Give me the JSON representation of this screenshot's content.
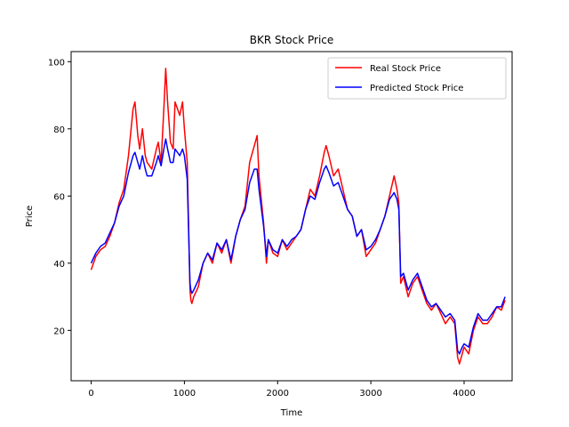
{
  "chart_data": {
    "type": "line",
    "title": "BKR Stock Price",
    "xlabel": "Time",
    "ylabel": "Price",
    "xlim": [
      -215,
      4515
    ],
    "ylim": [
      5,
      103
    ],
    "xticks": [
      0,
      1000,
      2000,
      3000,
      4000
    ],
    "yticks": [
      20,
      40,
      60,
      80,
      100
    ],
    "grid": false,
    "legend_position": "top-right",
    "series": [
      {
        "name": "Real Stock Price",
        "color": "#ff0000",
        "x": [
          0,
          50,
          100,
          150,
          200,
          250,
          300,
          350,
          400,
          450,
          470,
          500,
          520,
          550,
          580,
          600,
          650,
          700,
          720,
          750,
          780,
          800,
          820,
          850,
          880,
          900,
          950,
          980,
          1000,
          1030,
          1060,
          1070,
          1080,
          1100,
          1150,
          1200,
          1250,
          1300,
          1350,
          1400,
          1450,
          1500,
          1550,
          1600,
          1650,
          1700,
          1750,
          1780,
          1800,
          1850,
          1880,
          1900,
          1950,
          2000,
          2050,
          2100,
          2150,
          2200,
          2250,
          2300,
          2350,
          2400,
          2450,
          2500,
          2520,
          2550,
          2600,
          2650,
          2700,
          2750,
          2800,
          2850,
          2900,
          2950,
          3000,
          3050,
          3100,
          3150,
          3200,
          3250,
          3280,
          3300,
          3320,
          3350,
          3400,
          3450,
          3500,
          3550,
          3600,
          3650,
          3700,
          3750,
          3800,
          3850,
          3900,
          3930,
          3950,
          3980,
          4000,
          4050,
          4100,
          4150,
          4200,
          4250,
          4300,
          4350,
          4400,
          4440
        ],
        "y": [
          38,
          42,
          44,
          45,
          48,
          52,
          58,
          62,
          72,
          86,
          88,
          78,
          74,
          80,
          72,
          70,
          68,
          74,
          76,
          70,
          86,
          98,
          88,
          76,
          74,
          88,
          84,
          88,
          80,
          70,
          32,
          29,
          28,
          30,
          33,
          40,
          43,
          40,
          46,
          43,
          47,
          40,
          48,
          53,
          57,
          70,
          75,
          78,
          66,
          52,
          40,
          47,
          43,
          42,
          47,
          44,
          46,
          48,
          50,
          56,
          62,
          60,
          66,
          73,
          75,
          72,
          66,
          68,
          62,
          56,
          54,
          48,
          50,
          42,
          44,
          46,
          50,
          54,
          60,
          66,
          62,
          58,
          34,
          36,
          30,
          34,
          36,
          32,
          28,
          26,
          28,
          25,
          22,
          24,
          22,
          12,
          10,
          13,
          15,
          13,
          20,
          24,
          22,
          22,
          24,
          27,
          26,
          29
        ]
      },
      {
        "name": "Predicted Stock Price",
        "color": "#0000ff",
        "x": [
          0,
          50,
          100,
          150,
          200,
          250,
          300,
          350,
          400,
          450,
          470,
          500,
          520,
          550,
          580,
          600,
          650,
          700,
          720,
          750,
          780,
          800,
          820,
          850,
          880,
          900,
          950,
          980,
          1000,
          1030,
          1060,
          1070,
          1080,
          1100,
          1150,
          1200,
          1250,
          1300,
          1350,
          1400,
          1450,
          1500,
          1550,
          1600,
          1650,
          1700,
          1750,
          1780,
          1800,
          1850,
          1880,
          1900,
          1950,
          2000,
          2050,
          2100,
          2150,
          2200,
          2250,
          2300,
          2350,
          2400,
          2450,
          2500,
          2520,
          2550,
          2600,
          2650,
          2700,
          2750,
          2800,
          2850,
          2900,
          2950,
          3000,
          3050,
          3100,
          3150,
          3200,
          3250,
          3280,
          3300,
          3320,
          3350,
          3400,
          3450,
          3500,
          3550,
          3600,
          3650,
          3700,
          3750,
          3800,
          3850,
          3900,
          3930,
          3950,
          3980,
          4000,
          4050,
          4100,
          4150,
          4200,
          4250,
          4300,
          4350,
          4400,
          4440
        ],
        "y": [
          40,
          43,
          45,
          46,
          49,
          52,
          57,
          60,
          67,
          72,
          73,
          70,
          68,
          72,
          68,
          66,
          66,
          70,
          72,
          69,
          74,
          77,
          74,
          70,
          70,
          74,
          72,
          74,
          72,
          65,
          34,
          32,
          31,
          32,
          35,
          40,
          43,
          41,
          46,
          44,
          47,
          41,
          48,
          53,
          56,
          64,
          68,
          68,
          62,
          51,
          42,
          47,
          44,
          43,
          47,
          45,
          47,
          48,
          50,
          56,
          60,
          59,
          64,
          68,
          69,
          67,
          63,
          64,
          60,
          56,
          54,
          48,
          50,
          44,
          45,
          47,
          50,
          54,
          59,
          61,
          59,
          56,
          36,
          37,
          32,
          35,
          37,
          33,
          29,
          27,
          28,
          26,
          24,
          25,
          23,
          14,
          13,
          15,
          16,
          15,
          21,
          25,
          23,
          23,
          25,
          27,
          27,
          30
        ]
      }
    ]
  }
}
